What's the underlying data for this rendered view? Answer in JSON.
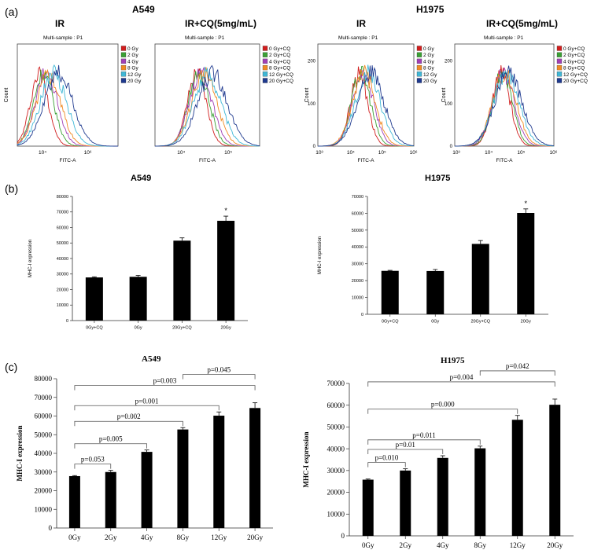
{
  "panel_labels": {
    "a": "(a)",
    "b": "(b)",
    "c": "(c)"
  },
  "cell_titles": {
    "a549": "A549",
    "h1975": "H1975"
  },
  "chart_data": [
    {
      "id": "a1",
      "type": "histogram",
      "title": "IR",
      "subtitle": "Multi-sample : P1",
      "xlabel": "FITC-A",
      "ylabel": "Count",
      "xticks": [
        "10⁴",
        "10⁶"
      ],
      "yticks": [],
      "legend": [
        "0 Gy",
        "2 Gy",
        "4 Gy",
        "8 Gy",
        "12 Gy",
        "20 Gy"
      ],
      "colors": [
        "#d11e1e",
        "#3aa034",
        "#a13fb5",
        "#f08a23",
        "#3fb7d6",
        "#1f3a8f"
      ],
      "peaks": [
        0.22,
        0.26,
        0.29,
        0.31,
        0.36,
        0.41
      ]
    },
    {
      "id": "a2",
      "type": "histogram",
      "title": "IR+CQ(5mg/mL)",
      "subtitle": "Multi-sample : P1",
      "xlabel": "FITC-A",
      "ylabel": "",
      "xticks": [
        "10⁴",
        "10⁵"
      ],
      "yticks": [],
      "legend": [
        "0 Gy+CQ",
        "2 Gy+CQ",
        "4 Gy+CQ",
        "8 Gy+CQ",
        "12 Gy+CQ",
        "20 Gy+CQ"
      ],
      "colors": [
        "#d11e1e",
        "#3aa034",
        "#a13fb5",
        "#f08a23",
        "#3fb7d6",
        "#1f3a8f"
      ],
      "peaks": [
        0.4,
        0.42,
        0.44,
        0.47,
        0.5,
        0.55
      ]
    },
    {
      "id": "a3",
      "type": "histogram",
      "title": "IR",
      "subtitle": "Multi-sample : P1",
      "xlabel": "FITC-A",
      "ylabel": "Count",
      "xticks": [
        "10³",
        "10⁴",
        "10⁵",
        "10⁶"
      ],
      "yticks": [
        "0",
        "100",
        "200"
      ],
      "legend": [
        "0 Gy",
        "2 Gy",
        "4 Gy",
        "8 Gy",
        "12 Gy",
        "20 Gy"
      ],
      "colors": [
        "#d11e1e",
        "#3aa034",
        "#a13fb5",
        "#f08a23",
        "#3fb7d6",
        "#1f3a8f"
      ],
      "peaks": [
        0.43,
        0.45,
        0.47,
        0.48,
        0.52,
        0.55
      ]
    },
    {
      "id": "a4",
      "type": "histogram",
      "title": "IR+CQ(5mg/mL)",
      "subtitle": "Multi-sample : P1",
      "xlabel": "FITC-A",
      "ylabel": "Count",
      "xticks": [
        "10³",
        "10⁴",
        "10⁵",
        "10⁶"
      ],
      "yticks": [
        "0",
        "100",
        "200"
      ],
      "legend": [
        "0 Gy+CQ",
        "2 Gy+CQ",
        "4 Gy+CQ",
        "8 Gy+CQ",
        "12 Gy+CQ",
        "20 Gy+CQ"
      ],
      "colors": [
        "#d11e1e",
        "#3aa034",
        "#a13fb5",
        "#f08a23",
        "#3fb7d6",
        "#1f3a8f"
      ],
      "peaks": [
        0.47,
        0.48,
        0.49,
        0.5,
        0.52,
        0.54
      ]
    },
    {
      "id": "b1",
      "type": "bar",
      "title": "A549",
      "ylabel": "MHC-Ⅰ expression",
      "categories": [
        "0Gy+CQ",
        "0Gy",
        "20Gy+CQ",
        "20Gy"
      ],
      "values": [
        27800,
        28200,
        51500,
        64300
      ],
      "errors": [
        400,
        900,
        1800,
        3000
      ],
      "stars": [
        "",
        "",
        "",
        "*"
      ],
      "yticks": [
        "0",
        "10000",
        "20000",
        "30000",
        "40000",
        "50000",
        "60000",
        "70000",
        "80000"
      ],
      "ylim": [
        0,
        80000
      ]
    },
    {
      "id": "b2",
      "type": "bar",
      "title": "H1975",
      "ylabel": "MHC-Ⅰ expression",
      "categories": [
        "0Gy+CQ",
        "0Gy",
        "20Gy+CQ",
        "20Gy"
      ],
      "values": [
        25800,
        25700,
        41800,
        60200
      ],
      "errors": [
        300,
        900,
        2000,
        2400
      ],
      "stars": [
        "",
        "",
        "",
        "*"
      ],
      "yticks": [
        "0",
        "10000",
        "20000",
        "30000",
        "40000",
        "50000",
        "60000",
        "70000"
      ],
      "ylim": [
        0,
        70000
      ]
    },
    {
      "id": "c1",
      "type": "bar",
      "title": "A549",
      "ylabel": "MHC-I expression",
      "categories": [
        "0Gy",
        "2Gy",
        "4Gy",
        "8Gy",
        "12Gy",
        "20Gy"
      ],
      "values": [
        27800,
        30000,
        40800,
        52800,
        60200,
        64300
      ],
      "errors": [
        300,
        900,
        1000,
        1000,
        2000,
        2800
      ],
      "yticks": [
        "0",
        "10000",
        "20000",
        "30000",
        "40000",
        "50000",
        "60000",
        "70000",
        "80000"
      ],
      "ylim": [
        0,
        80000
      ],
      "brackets": [
        {
          "from": 0,
          "to": 1,
          "label": "p=0.053",
          "level": 0
        },
        {
          "from": 0,
          "to": 2,
          "label": "p=0.005",
          "level": 1
        },
        {
          "from": 0,
          "to": 3,
          "label": "p=0.002",
          "level": 2
        },
        {
          "from": 0,
          "to": 4,
          "label": "p=0.001",
          "level": 3
        },
        {
          "from": 0,
          "to": 5,
          "label": "p=0.003",
          "level": 4
        },
        {
          "from": 3,
          "to": 5,
          "label": "p=0.045",
          "level": 5
        }
      ]
    },
    {
      "id": "c2",
      "type": "bar",
      "title": "H1975",
      "ylabel": "MHC-I expression",
      "categories": [
        "0Gy",
        "2Gy",
        "4Gy",
        "8Gy",
        "12Gy",
        "20Gy"
      ],
      "values": [
        25800,
        30000,
        35800,
        40200,
        53300,
        60200
      ],
      "errors": [
        300,
        800,
        1000,
        1000,
        2000,
        2600
      ],
      "yticks": [
        "0",
        "10000",
        "20000",
        "30000",
        "40000",
        "50000",
        "60000",
        "70000"
      ],
      "ylim": [
        0,
        70000
      ],
      "brackets": [
        {
          "from": 0,
          "to": 1,
          "label": "p=0.010",
          "level": 0
        },
        {
          "from": 0,
          "to": 2,
          "label": "p=0.01",
          "level": 1
        },
        {
          "from": 0,
          "to": 3,
          "label": "p=0.011",
          "level": 2
        },
        {
          "from": 0,
          "to": 4,
          "label": "p=0.000",
          "level": 3
        },
        {
          "from": 0,
          "to": 5,
          "label": "p=0.004",
          "level": 4
        },
        {
          "from": 3,
          "to": 5,
          "label": "p=0.042",
          "level": 5
        }
      ]
    }
  ]
}
